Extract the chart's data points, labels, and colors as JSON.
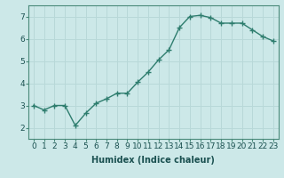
{
  "x": [
    0,
    1,
    2,
    3,
    4,
    5,
    6,
    7,
    8,
    9,
    10,
    11,
    12,
    13,
    14,
    15,
    16,
    17,
    18,
    19,
    20,
    21,
    22,
    23
  ],
  "y": [
    3.0,
    2.8,
    3.0,
    3.0,
    2.1,
    2.65,
    3.1,
    3.3,
    3.55,
    3.55,
    4.05,
    4.5,
    5.05,
    5.5,
    6.5,
    7.0,
    7.05,
    6.95,
    6.7,
    6.7,
    6.7,
    6.4,
    6.1,
    5.9
  ],
  "xlabel": "Humidex (Indice chaleur)",
  "line_color": "#2e7d6e",
  "marker": "+",
  "marker_size": 4,
  "bg_color": "#cce8e8",
  "grid_color": "#b8d8d8",
  "xlim": [
    -0.5,
    23.5
  ],
  "ylim": [
    1.5,
    7.5
  ],
  "yticks": [
    2,
    3,
    4,
    5,
    6,
    7
  ],
  "xticks": [
    0,
    1,
    2,
    3,
    4,
    5,
    6,
    7,
    8,
    9,
    10,
    11,
    12,
    13,
    14,
    15,
    16,
    17,
    18,
    19,
    20,
    21,
    22,
    23
  ],
  "xlabel_fontsize": 7,
  "tick_fontsize": 6.5,
  "line_width": 1.0,
  "text_color": "#1a5050",
  "spine_color": "#4a8a7a"
}
